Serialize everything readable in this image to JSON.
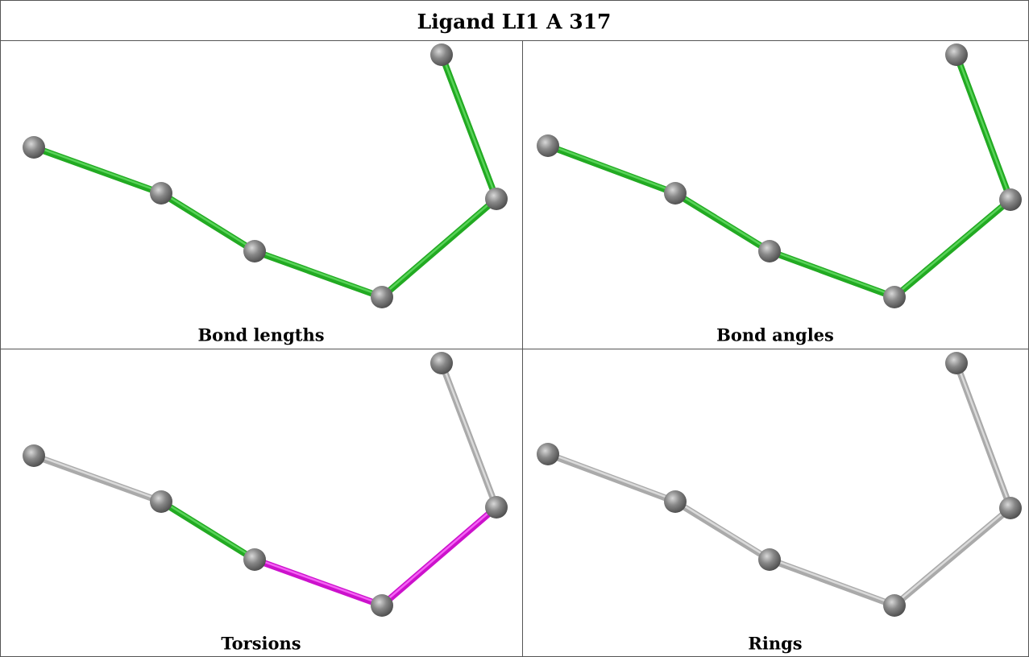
{
  "header": {
    "title": "Ligand LI1 A 317"
  },
  "panels": [
    {
      "caption": "Bond lengths"
    },
    {
      "caption": "Bond angles"
    },
    {
      "caption": "Torsions"
    },
    {
      "caption": "Rings"
    }
  ]
}
